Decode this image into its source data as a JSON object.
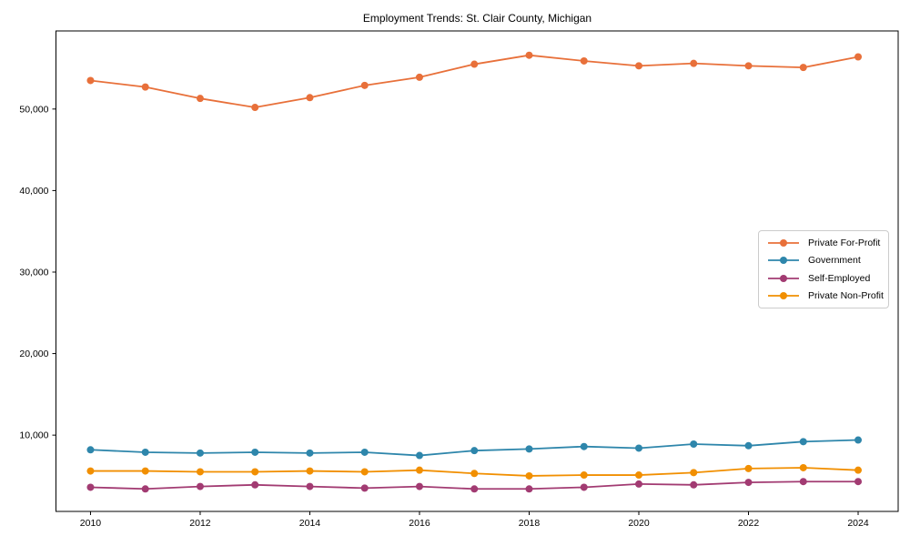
{
  "page": {
    "background": "#ffffff"
  },
  "chart_data": {
    "type": "line",
    "title": "Employment Trends: St. Clair County, Michigan",
    "xlabel": "",
    "ylabel": "",
    "grid": false,
    "legend_position": "center-right",
    "x": [
      2010,
      2011,
      2012,
      2013,
      2014,
      2015,
      2016,
      2017,
      2018,
      2019,
      2020,
      2021,
      2022,
      2023,
      2024
    ],
    "xticks": [
      2010,
      2012,
      2014,
      2016,
      2018,
      2020,
      2022,
      2024
    ],
    "xtick_labels": [
      "2010",
      "2012",
      "2014",
      "2016",
      "2018",
      "2020",
      "2022",
      "2024"
    ],
    "yticks": [
      10000,
      20000,
      30000,
      40000,
      50000
    ],
    "ytick_labels": [
      "10,000",
      "20,000",
      "30,000",
      "40,000",
      "50,000"
    ],
    "xlim": [
      2009.37,
      2024.73
    ],
    "ylim": [
      640,
      59580
    ],
    "series": [
      {
        "name": "Private For-Profit",
        "color": "#E8703A",
        "values": [
          53500,
          52700,
          51300,
          50200,
          51400,
          52900,
          53900,
          55500,
          56600,
          55900,
          55300,
          55600,
          55300,
          55100,
          56400
        ]
      },
      {
        "name": "Government",
        "color": "#2E86AB",
        "values": [
          8200,
          7900,
          7800,
          7900,
          7800,
          7900,
          7500,
          8100,
          8300,
          8600,
          8400,
          8900,
          8700,
          9200,
          9400
        ]
      },
      {
        "name": "Self-Employed",
        "color": "#A23B72",
        "values": [
          3600,
          3400,
          3700,
          3900,
          3700,
          3500,
          3700,
          3400,
          3400,
          3600,
          4000,
          3900,
          4200,
          4300,
          4300
        ]
      },
      {
        "name": "Private Non-Profit",
        "color": "#F18F01",
        "values": [
          5600,
          5600,
          5500,
          5500,
          5600,
          5500,
          5700,
          5300,
          5000,
          5100,
          5100,
          5400,
          5900,
          6000,
          5700
        ]
      }
    ]
  }
}
